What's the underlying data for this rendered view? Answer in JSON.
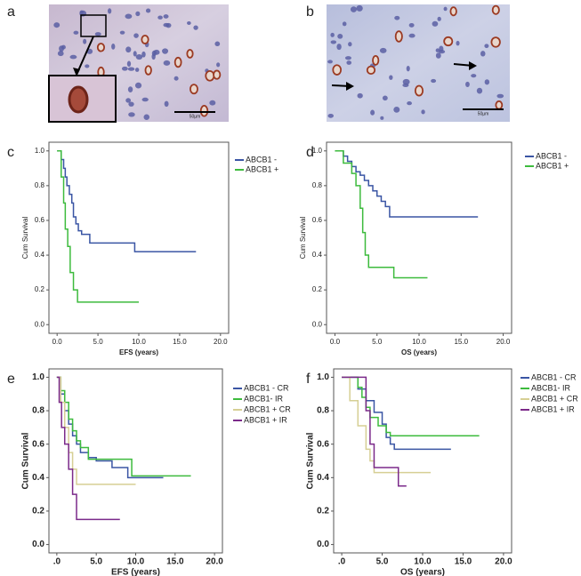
{
  "panels": [
    {
      "label": "a",
      "scale_bar": "50µm"
    },
    {
      "label": "b",
      "scale_bar": "50µm"
    }
  ],
  "chart_data": [
    {
      "type": "line",
      "drawstyle": "steps-post",
      "panel": "c",
      "xlabel": "EFS (years)",
      "ylabel": "Cum Survival",
      "xlim": [
        -1,
        21
      ],
      "ylim": [
        -0.05,
        1.05
      ],
      "xticks": [
        {
          "value": 0,
          "label": "0.0"
        },
        {
          "value": 5,
          "label": "5.0"
        },
        {
          "value": 10,
          "label": "10.0"
        },
        {
          "value": 15,
          "label": "15.0"
        },
        {
          "value": 20,
          "label": "20.0"
        }
      ],
      "yticks": [
        {
          "value": 0,
          "label": "0.0"
        },
        {
          "value": 0.2,
          "label": "0.2"
        },
        {
          "value": 0.4,
          "label": "0.4"
        },
        {
          "value": 0.6,
          "label": "0.6"
        },
        {
          "value": 0.8,
          "label": "0.8"
        },
        {
          "value": 1,
          "label": "1.0"
        }
      ],
      "series": [
        {
          "name": "ABCB1 -",
          "color": "#3a55a4",
          "x": [
            0,
            0.5,
            0.8,
            1,
            1.2,
            1.5,
            1.8,
            2,
            2.3,
            2.6,
            3,
            4,
            6,
            9.5,
            17
          ],
          "values": [
            1,
            0.95,
            0.9,
            0.85,
            0.8,
            0.75,
            0.7,
            0.62,
            0.58,
            0.54,
            0.52,
            0.47,
            0.47,
            0.42,
            0.42
          ]
        },
        {
          "name": "ABCB1 +",
          "color": "#3dbb3d",
          "x": [
            0,
            0.5,
            0.8,
            1,
            1.3,
            1.6,
            2,
            2.5,
            10
          ],
          "values": [
            1,
            0.85,
            0.7,
            0.55,
            0.45,
            0.3,
            0.2,
            0.13,
            0.13
          ]
        }
      ]
    },
    {
      "type": "line",
      "drawstyle": "steps-post",
      "panel": "d",
      "xlabel": "OS (years)",
      "ylabel": "Cum Survival",
      "xlim": [
        -1,
        21
      ],
      "ylim": [
        -0.05,
        1.05
      ],
      "xticks": [
        {
          "value": 0,
          "label": "0.0"
        },
        {
          "value": 5,
          "label": "5.0"
        },
        {
          "value": 10,
          "label": "10.0"
        },
        {
          "value": 15,
          "label": "15.0"
        },
        {
          "value": 20,
          "label": "20.0"
        }
      ],
      "yticks": [
        {
          "value": 0,
          "label": "0.0"
        },
        {
          "value": 0.2,
          "label": "0.2"
        },
        {
          "value": 0.4,
          "label": "0.4"
        },
        {
          "value": 0.6,
          "label": "0.6"
        },
        {
          "value": 0.8,
          "label": "0.8"
        },
        {
          "value": 1,
          "label": "1.0"
        }
      ],
      "series": [
        {
          "name": "ABCB1 -",
          "color": "#3a55a4",
          "x": [
            0,
            1,
            1.5,
            2,
            2.5,
            3,
            3.5,
            4,
            4.5,
            5,
            5.5,
            6,
            6.5,
            17
          ],
          "values": [
            1,
            0.97,
            0.94,
            0.91,
            0.88,
            0.86,
            0.83,
            0.8,
            0.77,
            0.74,
            0.71,
            0.68,
            0.62,
            0.62
          ]
        },
        {
          "name": "ABCB1 +",
          "color": "#3dbb3d",
          "x": [
            0,
            1,
            2,
            2.5,
            3,
            3.3,
            3.6,
            4,
            7,
            11
          ],
          "values": [
            1,
            0.93,
            0.87,
            0.8,
            0.67,
            0.53,
            0.4,
            0.33,
            0.27,
            0.27
          ]
        }
      ]
    },
    {
      "type": "line",
      "drawstyle": "steps-post",
      "panel": "e",
      "xlabel": "EFS (years)",
      "ylabel": "Cum Survival",
      "xlim": [
        -1,
        21
      ],
      "ylim": [
        -0.05,
        1.05
      ],
      "xticks": [
        {
          "value": 0,
          "label": ".0"
        },
        {
          "value": 5,
          "label": "5.0"
        },
        {
          "value": 10,
          "label": "10.0"
        },
        {
          "value": 15,
          "label": "15.0"
        },
        {
          "value": 20,
          "label": "20.0"
        }
      ],
      "yticks": [
        {
          "value": 0,
          "label": "0.0"
        },
        {
          "value": 0.2,
          "label": "0.2"
        },
        {
          "value": 0.4,
          "label": "0.4"
        },
        {
          "value": 0.6,
          "label": "0.6"
        },
        {
          "value": 0.8,
          "label": "0.8"
        },
        {
          "value": 1,
          "label": "1.0"
        }
      ],
      "series": [
        {
          "name": "ABCB1 - CR",
          "color": "#3a55a4",
          "x": [
            0,
            0.5,
            1,
            1.5,
            2,
            2.5,
            3,
            4,
            5,
            7,
            9,
            13.5
          ],
          "values": [
            1,
            0.9,
            0.8,
            0.72,
            0.65,
            0.6,
            0.55,
            0.52,
            0.5,
            0.46,
            0.4,
            0.4
          ]
        },
        {
          "name": "ABCB1- IR",
          "color": "#3dbb3d",
          "x": [
            0,
            0.5,
            1,
            1.5,
            2,
            2.5,
            3,
            4,
            9.5,
            17
          ],
          "values": [
            1,
            0.92,
            0.85,
            0.75,
            0.68,
            0.62,
            0.58,
            0.51,
            0.41,
            0.41
          ]
        },
        {
          "name": "ABCB1 + CR",
          "color": "#d6cf94",
          "x": [
            0,
            0.5,
            1,
            1.5,
            2,
            2.5,
            10
          ],
          "values": [
            1,
            0.85,
            0.7,
            0.55,
            0.45,
            0.36,
            0.36
          ]
        },
        {
          "name": "ABCB1 + IR",
          "color": "#7b2a8a",
          "x": [
            0,
            0.3,
            0.6,
            1,
            1.5,
            2,
            2.5,
            8
          ],
          "values": [
            1,
            0.85,
            0.7,
            0.6,
            0.45,
            0.3,
            0.15,
            0.15
          ]
        }
      ]
    },
    {
      "type": "line",
      "drawstyle": "steps-post",
      "panel": "f",
      "xlabel": "OS (years)",
      "ylabel": "Cum Survival",
      "xlim": [
        -1,
        21
      ],
      "ylim": [
        -0.05,
        1.05
      ],
      "xticks": [
        {
          "value": 0,
          "label": ".0"
        },
        {
          "value": 5,
          "label": "5.0"
        },
        {
          "value": 10,
          "label": "10.0"
        },
        {
          "value": 15,
          "label": "15.0"
        },
        {
          "value": 20,
          "label": "20.0"
        }
      ],
      "yticks": [
        {
          "value": 0,
          "label": "0.0"
        },
        {
          "value": 0.2,
          "label": "0.2"
        },
        {
          "value": 0.4,
          "label": "0.4"
        },
        {
          "value": 0.6,
          "label": "0.6"
        },
        {
          "value": 0.8,
          "label": "0.8"
        },
        {
          "value": 1,
          "label": "1.0"
        }
      ],
      "series": [
        {
          "name": "ABCB1 - CR",
          "color": "#3a55a4",
          "x": [
            0,
            2,
            3,
            4,
            5,
            5.5,
            6,
            6.5,
            13.5
          ],
          "values": [
            1,
            0.93,
            0.86,
            0.79,
            0.72,
            0.64,
            0.6,
            0.57,
            0.57
          ]
        },
        {
          "name": "ABCB1- IR",
          "color": "#3dbb3d",
          "x": [
            0,
            2,
            2.5,
            3,
            3.5,
            4.5,
            5.5,
            6,
            17
          ],
          "values": [
            1,
            0.94,
            0.88,
            0.82,
            0.76,
            0.71,
            0.67,
            0.65,
            0.65
          ]
        },
        {
          "name": "ABCB1 + CR",
          "color": "#d6cf94",
          "x": [
            0,
            1,
            2,
            3,
            3.5,
            4,
            5,
            11
          ],
          "values": [
            1,
            0.86,
            0.71,
            0.57,
            0.5,
            0.43,
            0.43,
            0.43
          ]
        },
        {
          "name": "ABCB1 + IR",
          "color": "#7b2a8a",
          "x": [
            0,
            3,
            3.5,
            4,
            5,
            7,
            8
          ],
          "values": [
            1,
            0.8,
            0.6,
            0.46,
            0.46,
            0.35,
            0.35
          ]
        }
      ]
    }
  ]
}
